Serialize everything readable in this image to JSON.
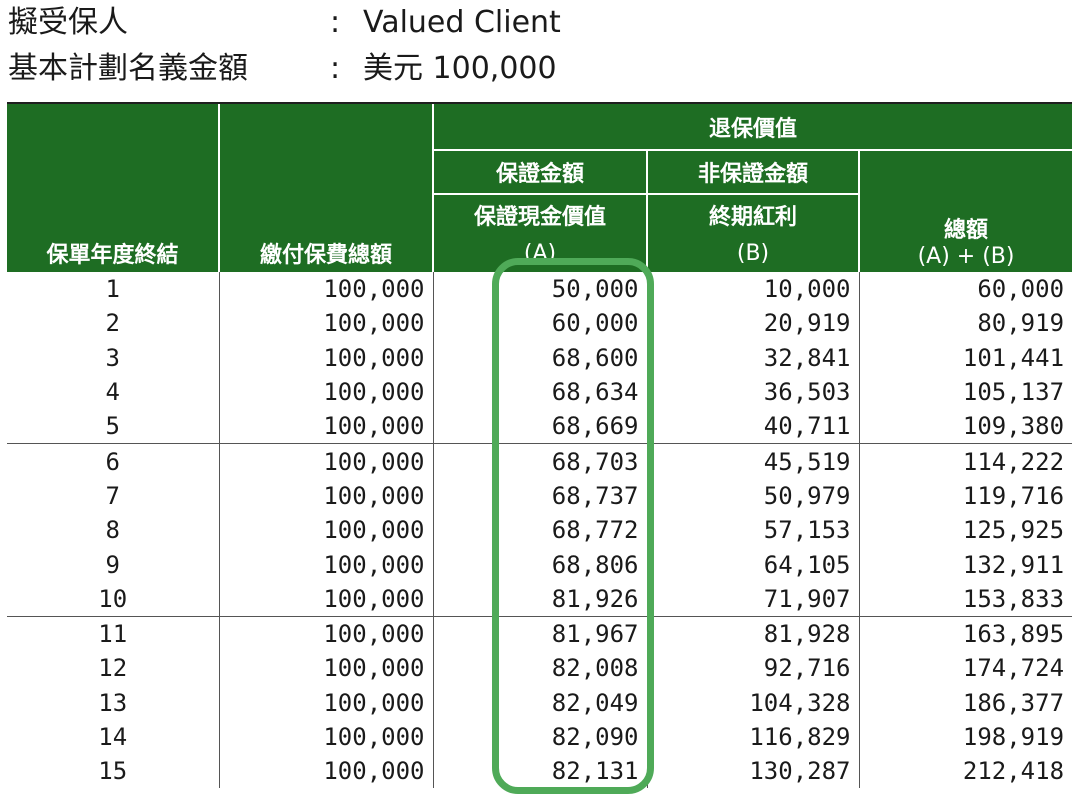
{
  "info": {
    "insured_label": "擬受保人",
    "insured_value": "Valued Client",
    "sum_label": "基本計劃名義金額",
    "sum_value": "美元 100,000",
    "colon": ":"
  },
  "table": {
    "headers": {
      "year_end": "保單年度終結",
      "total_premium": "繳付保費總額",
      "surrender_value": "退保價值",
      "guaranteed_amount": "保證金額",
      "non_guaranteed_amount": "非保證金額",
      "guaranteed_cash_value": "保證現金價值",
      "guaranteed_cash_value_code": "(A)",
      "terminal_bonus": "終期紅利",
      "terminal_bonus_code": "(B)",
      "total": "總額",
      "total_formula": "(A) + (B)"
    },
    "rows": [
      {
        "year": "1",
        "premium": "100,000",
        "a": "50,000",
        "b": "10,000",
        "total": "60,000"
      },
      {
        "year": "2",
        "premium": "100,000",
        "a": "60,000",
        "b": "20,919",
        "total": "80,919"
      },
      {
        "year": "3",
        "premium": "100,000",
        "a": "68,600",
        "b": "32,841",
        "total": "101,441"
      },
      {
        "year": "4",
        "premium": "100,000",
        "a": "68,634",
        "b": "36,503",
        "total": "105,137"
      },
      {
        "year": "5",
        "premium": "100,000",
        "a": "68,669",
        "b": "40,711",
        "total": "109,380"
      },
      {
        "year": "6",
        "premium": "100,000",
        "a": "68,703",
        "b": "45,519",
        "total": "114,222"
      },
      {
        "year": "7",
        "premium": "100,000",
        "a": "68,737",
        "b": "50,979",
        "total": "119,716"
      },
      {
        "year": "8",
        "premium": "100,000",
        "a": "68,772",
        "b": "57,153",
        "total": "125,925"
      },
      {
        "year": "9",
        "premium": "100,000",
        "a": "68,806",
        "b": "64,105",
        "total": "132,911"
      },
      {
        "year": "10",
        "premium": "100,000",
        "a": "81,926",
        "b": "71,907",
        "total": "153,833"
      },
      {
        "year": "11",
        "premium": "100,000",
        "a": "81,967",
        "b": "81,928",
        "total": "163,895"
      },
      {
        "year": "12",
        "premium": "100,000",
        "a": "82,008",
        "b": "92,716",
        "total": "174,724"
      },
      {
        "year": "13",
        "premium": "100,000",
        "a": "82,049",
        "b": "104,328",
        "total": "186,377"
      },
      {
        "year": "14",
        "premium": "100,000",
        "a": "82,090",
        "b": "116,829",
        "total": "198,919"
      },
      {
        "year": "15",
        "premium": "100,000",
        "a": "82,131",
        "b": "130,287",
        "total": "212,418"
      }
    ]
  },
  "colors": {
    "header_green": "#1e6d23",
    "highlight_green": "#4faa58"
  }
}
